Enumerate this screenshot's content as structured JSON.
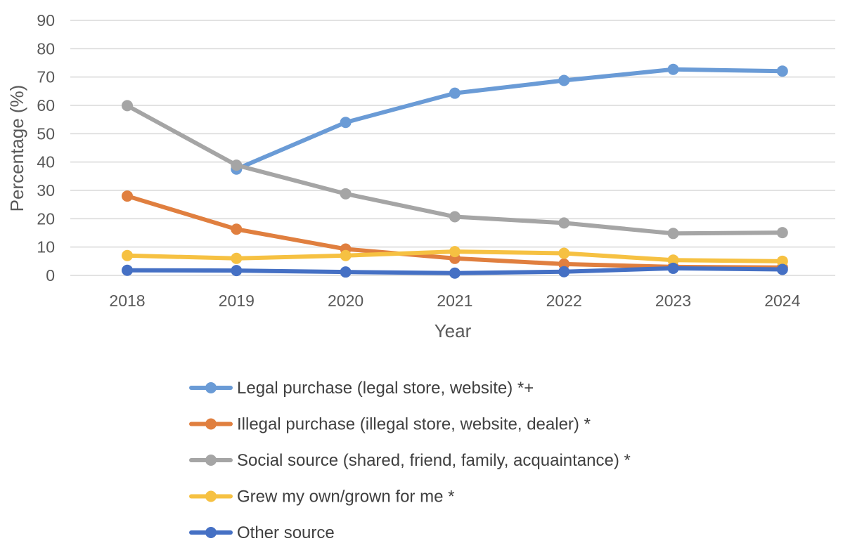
{
  "chart_data": {
    "type": "line",
    "title": "",
    "xlabel": "Year",
    "ylabel": "Percentage (%)",
    "ylim": [
      0,
      90
    ],
    "yticks": [
      "0",
      "10",
      "20",
      "30",
      "40",
      "50",
      "60",
      "70",
      "80",
      "90"
    ],
    "grid": true,
    "legend_position": "bottom",
    "categories": [
      "2018",
      "2019",
      "2020",
      "2021",
      "2022",
      "2023",
      "2024"
    ],
    "series": [
      {
        "name": "Legal purchase (legal store, website) *+",
        "color": "#6a9bd6",
        "values": [
          null,
          37.5,
          54,
          64.3,
          68.8,
          72.7,
          72.1
        ]
      },
      {
        "name": "Illegal purchase (illegal store, website, dealer) *",
        "color": "#e07f3f",
        "values": [
          28,
          16.3,
          9.3,
          6,
          4,
          3,
          2.8
        ]
      },
      {
        "name": "Social source (shared, friend, family, acquaintance) *",
        "color": "#a5a5a5",
        "values": [
          59.9,
          38.9,
          28.8,
          20.7,
          18.5,
          14.8,
          15.1
        ]
      },
      {
        "name": "Grew my own/grown for me *",
        "color": "#f6c142",
        "values": [
          7,
          6,
          7,
          8.4,
          7.8,
          5.4,
          5
        ]
      },
      {
        "name": "Other source",
        "color": "#4570c4",
        "values": [
          1.8,
          1.7,
          1.2,
          0.8,
          1.3,
          2.5,
          2.1
        ]
      }
    ]
  }
}
